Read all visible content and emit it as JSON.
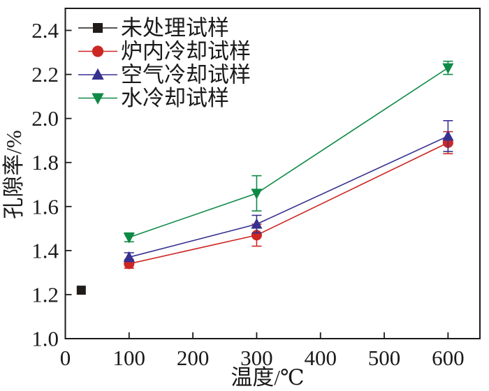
{
  "figure": {
    "background": "#ffffff",
    "axis_color": "#1a1a1a"
  },
  "chart_data": {
    "type": "line",
    "title": "",
    "xlabel": "温度/℃",
    "ylabel": "孔隙率/%",
    "xlim": [
      0,
      650
    ],
    "ylim": [
      1.0,
      2.5
    ],
    "xticks": [
      0,
      100,
      200,
      300,
      400,
      500,
      600
    ],
    "yticks": [
      1.0,
      1.2,
      1.4,
      1.6,
      1.8,
      2.0,
      2.2,
      2.4
    ],
    "grid": false,
    "legend_position": "top-left",
    "series": [
      {
        "key": "untreated",
        "name": "未处理试样",
        "color": "#211c19",
        "marker": "square",
        "line": false,
        "x": [
          25
        ],
        "y": [
          1.22
        ],
        "yerr": [
          0
        ]
      },
      {
        "key": "furnace-cooled",
        "name": "炉内冷却试样",
        "color": "#cc2722",
        "marker": "circle",
        "line": true,
        "x": [
          100,
          300,
          600
        ],
        "y": [
          1.34,
          1.47,
          1.89
        ],
        "yerr": [
          0.02,
          0.05,
          0.05
        ]
      },
      {
        "key": "air-cooled",
        "name": "空气冷却试样",
        "color": "#36318f",
        "marker": "triangle-up",
        "line": true,
        "x": [
          100,
          300,
          600
        ],
        "y": [
          1.37,
          1.52,
          1.92
        ],
        "yerr": [
          0.02,
          0.04,
          0.07
        ]
      },
      {
        "key": "water-cooled",
        "name": "水冷却试样",
        "color": "#0f8a46",
        "marker": "triangle-down",
        "line": true,
        "x": [
          100,
          300,
          600
        ],
        "y": [
          1.46,
          1.66,
          2.23
        ],
        "yerr": [
          0.02,
          0.08,
          0.03
        ]
      }
    ]
  }
}
